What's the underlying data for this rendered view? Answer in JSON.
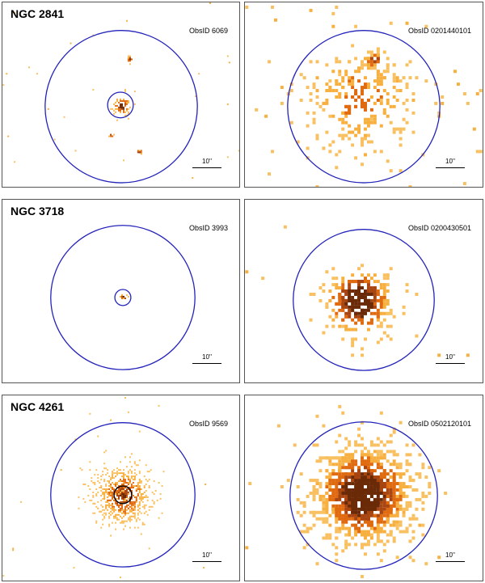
{
  "rows": [
    {
      "galaxy": "NGC 2841",
      "panels": [
        {
          "obsid": "ObsID 6069",
          "scalebar": "10''"
        },
        {
          "obsid": "ObsID 0201440101",
          "scalebar": "10''"
        }
      ]
    },
    {
      "galaxy": "NGC 3718",
      "panels": [
        {
          "obsid": "ObsID 3993",
          "scalebar": "10''"
        },
        {
          "obsid": "ObsID 0200430501",
          "scalebar": "10''"
        }
      ]
    },
    {
      "galaxy": "NGC 4261",
      "panels": [
        {
          "obsid": "ObsID 9569",
          "scalebar": "10''"
        },
        {
          "obsid": "ObsID 0502120101",
          "scalebar": "10''"
        }
      ]
    }
  ],
  "colors": {
    "aperture": "#2222bb",
    "heat_low": "#f7b040",
    "heat_mid": "#e06a10",
    "heat_high": "#6a2a08"
  }
}
